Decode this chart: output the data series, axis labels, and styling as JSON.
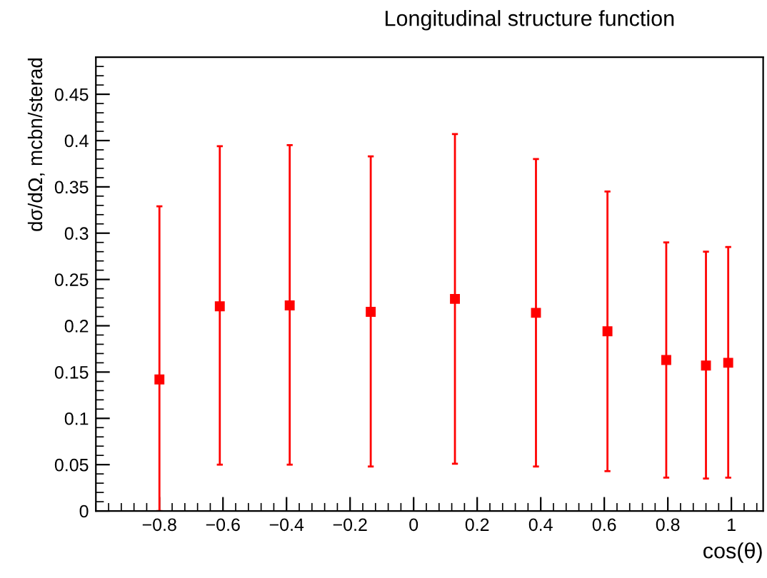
{
  "chart_data": {
    "type": "scatter",
    "title": "Longitudinal structure function",
    "xlabel": "cos(θ)",
    "ylabel": "dσ/dΩ, mcbn/sterad",
    "x": [
      -0.8,
      -0.61,
      -0.39,
      -0.135,
      0.13,
      0.385,
      0.61,
      0.795,
      0.92,
      0.99
    ],
    "series": [
      {
        "color": "#ff0000",
        "values": [
          0.142,
          0.221,
          0.222,
          0.215,
          0.229,
          0.214,
          0.194,
          0.163,
          0.157,
          0.16
        ],
        "errors": [
          [
            0,
            0.329
          ],
          [
            0.05,
            0.394
          ],
          [
            0.05,
            0.395
          ],
          [
            0.048,
            0.383
          ],
          [
            0.051,
            0.407
          ],
          [
            0.048,
            0.38
          ],
          [
            0.043,
            0.345
          ],
          [
            0.036,
            0.29
          ],
          [
            0.035,
            0.28
          ],
          [
            0.036,
            0.285
          ]
        ]
      }
    ],
    "xlim": [
      -1,
      1.1
    ],
    "ylim": [
      0,
      0.49
    ],
    "xticks": [
      {
        "value": -0.8,
        "label": "−0.8"
      },
      {
        "value": -0.6,
        "label": "−0.6"
      },
      {
        "value": -0.4,
        "label": "−0.4"
      },
      {
        "value": -0.2,
        "label": "−0.2"
      },
      0,
      0.2,
      0.4,
      0.6,
      0.8,
      1
    ],
    "yticks": [
      0,
      0.05,
      0.1,
      0.15,
      0.2,
      0.25,
      0.3,
      0.35,
      0.4,
      0.45
    ],
    "marker": "square",
    "grid": false,
    "legend": false
  }
}
